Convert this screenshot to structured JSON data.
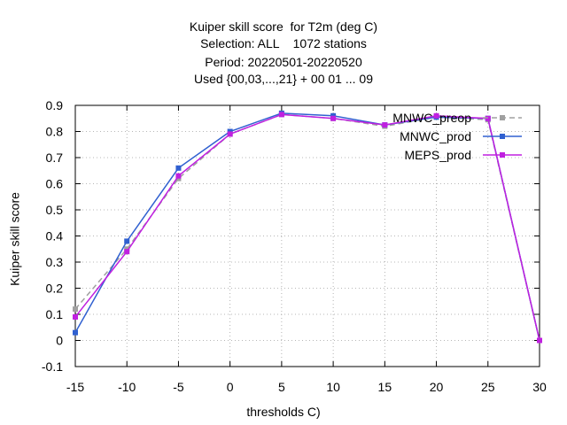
{
  "chart_data": {
    "type": "line",
    "title_lines": [
      "Kuiper skill score  for T2m (deg C)",
      "Selection: ALL    1072 stations",
      "Period: 20220501-20220520",
      "Used {00,03,...,21} + 00 01 ... 09"
    ],
    "xlabel": "thresholds C)",
    "ylabel": "Kuiper skill score",
    "x_ticks": [
      -15,
      -10,
      -5,
      0,
      5,
      10,
      15,
      20,
      25,
      30
    ],
    "y_ticks": [
      -0.1,
      0,
      0.1,
      0.2,
      0.3,
      0.4,
      0.5,
      0.6,
      0.7,
      0.8,
      0.9
    ],
    "x_tick_labels": [
      "-15",
      "-10",
      "-5",
      "0",
      "5",
      "10",
      "15",
      "20",
      "25",
      "30"
    ],
    "y_tick_labels": [
      "-0.1",
      "0",
      "0.1",
      "0.2",
      "0.3",
      "0.4",
      "0.5",
      "0.6",
      "0.7",
      "0.8",
      "0.9"
    ],
    "xlim": [
      -15,
      30
    ],
    "ylim": [
      -0.1,
      0.9
    ],
    "grid": true,
    "legend_position": "top-right",
    "x": [
      -15,
      -10,
      -5,
      0,
      5,
      10,
      15,
      20,
      25,
      30
    ],
    "series": [
      {
        "name": "MNWC_preop",
        "color": "#a0a0a0",
        "dashed": true,
        "values": [
          0.12,
          0.35,
          0.62,
          0.79,
          0.865,
          0.85,
          0.82,
          0.855,
          0.845,
          0.0
        ]
      },
      {
        "name": "MNWC_prod",
        "color": "#3060d0",
        "dashed": false,
        "values": [
          0.03,
          0.38,
          0.66,
          0.8,
          0.87,
          0.86,
          0.825,
          0.855,
          0.85,
          0.0
        ]
      },
      {
        "name": "MEPS_prod",
        "color": "#c020e0",
        "dashed": false,
        "values": [
          0.09,
          0.34,
          0.63,
          0.79,
          0.865,
          0.85,
          0.825,
          0.86,
          0.85,
          0.0
        ]
      }
    ]
  }
}
